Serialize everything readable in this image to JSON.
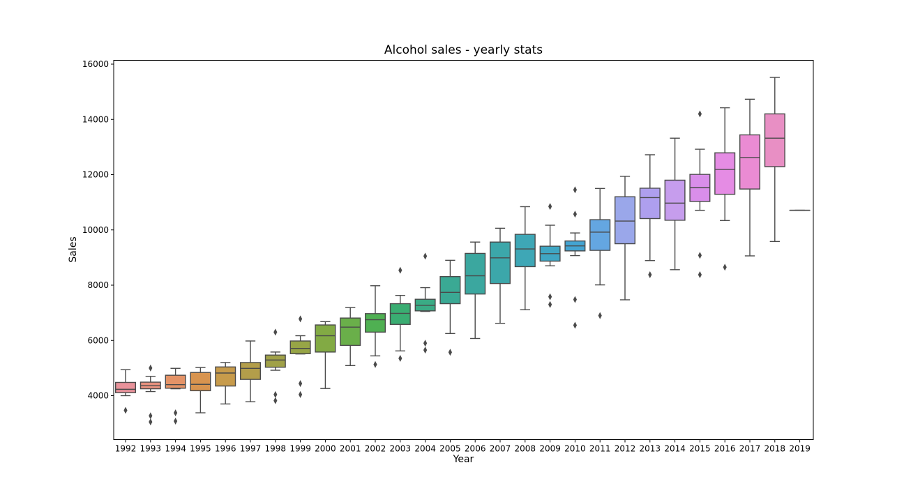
{
  "chart_data": {
    "type": "boxplot",
    "title": "Alcohol sales - yearly stats",
    "xlabel": "Year",
    "ylabel": "Sales",
    "ylim": [
      2400,
      16100
    ],
    "yticks": [
      4000,
      6000,
      8000,
      10000,
      12000,
      14000,
      16000
    ],
    "grid": false,
    "categories": [
      "1992",
      "1993",
      "1994",
      "1995",
      "1996",
      "1997",
      "1998",
      "1999",
      "2000",
      "2001",
      "2002",
      "2003",
      "2004",
      "2005",
      "2006",
      "2007",
      "2008",
      "2009",
      "2010",
      "2011",
      "2012",
      "2013",
      "2014",
      "2015",
      "2016",
      "2017",
      "2018",
      "2019"
    ],
    "boxes": [
      {
        "year": "1992",
        "min": 4000,
        "q1": 4110,
        "median": 4230,
        "q3": 4480,
        "max": 4940,
        "outliers": [
          3470
        ],
        "color": "#e8929a"
      },
      {
        "year": "1993",
        "min": 4150,
        "q1": 4250,
        "median": 4360,
        "q3": 4490,
        "max": 4700,
        "outliers": [
          5000,
          3270,
          3050
        ],
        "color": "#e8927f"
      },
      {
        "year": "1994",
        "min": 4250,
        "q1": 4270,
        "median": 4400,
        "q3": 4740,
        "max": 4990,
        "outliers": [
          3380,
          3080
        ],
        "color": "#e49367"
      },
      {
        "year": "1995",
        "min": 3380,
        "q1": 4180,
        "median": 4410,
        "q3": 4840,
        "max": 5020,
        "outliers": [],
        "color": "#d8944f"
      },
      {
        "year": "1996",
        "min": 3700,
        "q1": 4350,
        "median": 4820,
        "q3": 5040,
        "max": 5200,
        "outliers": [],
        "color": "#c79b4b"
      },
      {
        "year": "1997",
        "min": 3780,
        "q1": 4590,
        "median": 4990,
        "q3": 5200,
        "max": 5980,
        "outliers": [],
        "color": "#b39e4a"
      },
      {
        "year": "1998",
        "min": 4920,
        "q1": 5030,
        "median": 5290,
        "q3": 5470,
        "max": 5580,
        "outliers": [
          6300,
          4040,
          3820
        ],
        "color": "#a0a148"
      },
      {
        "year": "1999",
        "min": 5510,
        "q1": 5520,
        "median": 5710,
        "q3": 5980,
        "max": 6170,
        "outliers": [
          6780,
          4440,
          4040
        ],
        "color": "#97a546"
      },
      {
        "year": "2000",
        "min": 4260,
        "q1": 5580,
        "median": 6170,
        "q3": 6560,
        "max": 6680,
        "outliers": [],
        "color": "#82aa44"
      },
      {
        "year": "2001",
        "min": 5090,
        "q1": 5820,
        "median": 6480,
        "q3": 6810,
        "max": 7190,
        "outliers": [],
        "color": "#6aaf4a"
      },
      {
        "year": "2002",
        "min": 5440,
        "q1": 6300,
        "median": 6750,
        "q3": 6970,
        "max": 7980,
        "outliers": [
          5130
        ],
        "color": "#4fb052"
      },
      {
        "year": "2003",
        "min": 5620,
        "q1": 6580,
        "median": 6980,
        "q3": 7330,
        "max": 7630,
        "outliers": [
          8540,
          5350
        ],
        "color": "#3aad72"
      },
      {
        "year": "2004",
        "min": 7050,
        "q1": 7070,
        "median": 7270,
        "q3": 7490,
        "max": 7910,
        "outliers": [
          9050,
          5900,
          5650
        ],
        "color": "#3aab85"
      },
      {
        "year": "2005",
        "min": 6250,
        "q1": 7330,
        "median": 7740,
        "q3": 8310,
        "max": 8900,
        "outliers": [
          5570
        ],
        "color": "#3aa994"
      },
      {
        "year": "2006",
        "min": 6070,
        "q1": 7680,
        "median": 8340,
        "q3": 9150,
        "max": 9560,
        "outliers": [],
        "color": "#3ba79f"
      },
      {
        "year": "2007",
        "min": 6620,
        "q1": 8060,
        "median": 8990,
        "q3": 9560,
        "max": 10060,
        "outliers": [],
        "color": "#3ca7aa"
      },
      {
        "year": "2008",
        "min": 7110,
        "q1": 8670,
        "median": 9310,
        "q3": 9840,
        "max": 10840,
        "outliers": [],
        "color": "#3ea7b6"
      },
      {
        "year": "2009",
        "min": 8700,
        "q1": 8870,
        "median": 9140,
        "q3": 9410,
        "max": 10170,
        "outliers": [
          10850,
          7580,
          7300
        ],
        "color": "#3fa6c3"
      },
      {
        "year": "2010",
        "min": 9070,
        "q1": 9240,
        "median": 9420,
        "q3": 9600,
        "max": 9890,
        "outliers": [
          11450,
          10570,
          7480,
          6550
        ],
        "color": "#44a4d2"
      },
      {
        "year": "2011",
        "min": 8010,
        "q1": 9260,
        "median": 9920,
        "q3": 10370,
        "max": 11500,
        "outliers": [
          6900
        ],
        "color": "#64a6e1"
      },
      {
        "year": "2012",
        "min": 7470,
        "q1": 9500,
        "median": 10320,
        "q3": 11200,
        "max": 11940,
        "outliers": [],
        "color": "#9aa7ea"
      },
      {
        "year": "2013",
        "min": 8890,
        "q1": 10410,
        "median": 11170,
        "q3": 11510,
        "max": 12720,
        "outliers": [
          8380
        ],
        "color": "#ae9fee"
      },
      {
        "year": "2014",
        "min": 8560,
        "q1": 10350,
        "median": 10970,
        "q3": 11800,
        "max": 13320,
        "outliers": [],
        "color": "#c69ded"
      },
      {
        "year": "2015",
        "min": 10710,
        "q1": 11030,
        "median": 11530,
        "q3": 12010,
        "max": 12920,
        "outliers": [
          14200,
          9080,
          8380
        ],
        "color": "#d98eea"
      },
      {
        "year": "2016",
        "min": 10340,
        "q1": 11290,
        "median": 12190,
        "q3": 12790,
        "max": 14420,
        "outliers": [
          8650
        ],
        "color": "#e58ce4"
      },
      {
        "year": "2017",
        "min": 9060,
        "q1": 11480,
        "median": 12620,
        "q3": 13440,
        "max": 14730,
        "outliers": [],
        "color": "#ea8bd3"
      },
      {
        "year": "2018",
        "min": 9580,
        "q1": 12290,
        "median": 13320,
        "q3": 14200,
        "max": 15520,
        "outliers": [],
        "color": "#e88fc4"
      },
      {
        "year": "2019",
        "min": 10710,
        "q1": 10710,
        "median": 10710,
        "q3": 10710,
        "max": 10710,
        "outliers": [],
        "color": "#e891b8"
      }
    ]
  }
}
